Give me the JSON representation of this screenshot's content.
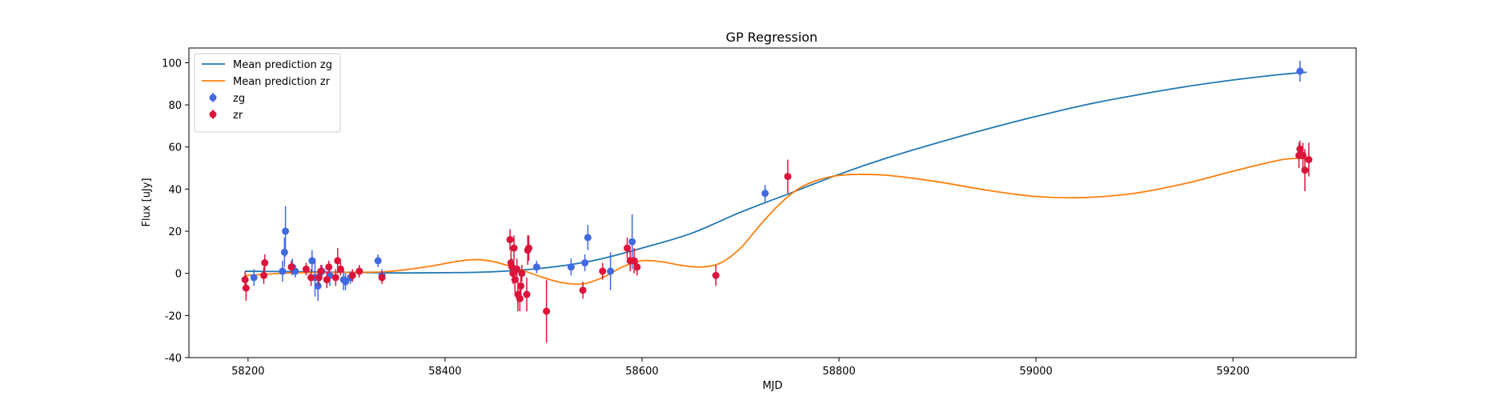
{
  "chart_data": {
    "type": "scatter",
    "title": "GP Regression",
    "xlabel": "MJD",
    "ylabel": "Flux [uJy]",
    "xlim": [
      58140,
      59325
    ],
    "ylim": [
      -40,
      107
    ],
    "xticks": [
      58200,
      58400,
      58600,
      58800,
      59000,
      59200
    ],
    "yticks": [
      -40,
      -20,
      0,
      20,
      40,
      60,
      80,
      100
    ],
    "grid": false,
    "legend_placement": "top-left",
    "series": [
      {
        "name": "Mean prediction zg",
        "kind": "line",
        "color": "#1f77b4",
        "x": [
          58197,
          58250,
          58300,
          58350,
          58400,
          58450,
          58500,
          58550,
          58600,
          58650,
          58700,
          58750,
          58800,
          58850,
          58900,
          58950,
          59000,
          59050,
          59100,
          59150,
          59200,
          59250,
          59275
        ],
        "y": [
          1,
          0.8,
          0.5,
          0.2,
          0.3,
          0.8,
          2.5,
          6,
          12,
          19,
          29,
          38,
          47,
          55,
          62,
          68.5,
          74.5,
          80,
          84.5,
          88.5,
          91.8,
          94.5,
          95.5
        ]
      },
      {
        "name": "Mean prediction zr",
        "kind": "line",
        "color": "#ff7f0e",
        "x": [
          58197,
          58250,
          58300,
          58340,
          58380,
          58410,
          58430,
          58450,
          58475,
          58500,
          58520,
          58540,
          58560,
          58580,
          58600,
          58620,
          58640,
          58660,
          58680,
          58700,
          58720,
          58740,
          58760,
          58780,
          58800,
          58820,
          58850,
          58900,
          58950,
          59000,
          59050,
          59100,
          59150,
          59200,
          59250,
          59275
        ],
        "y": [
          -1,
          0.3,
          0.5,
          0.8,
          3,
          5.5,
          6.5,
          5.5,
          2,
          -2,
          -4.5,
          -5,
          -2,
          3,
          6,
          5.5,
          3.8,
          3,
          5,
          12,
          23,
          33,
          40.5,
          44.5,
          46.5,
          47,
          46.5,
          43.5,
          39.5,
          36.5,
          36,
          38,
          42.5,
          48.5,
          54,
          54.5
        ]
      },
      {
        "name": "zg",
        "kind": "errorbar",
        "color": "#4169e1",
        "points": [
          [
            58206,
            -2,
            4
          ],
          [
            58235,
            1,
            5
          ],
          [
            58237,
            10,
            7
          ],
          [
            58238,
            20,
            12
          ],
          [
            58245,
            3,
            4
          ],
          [
            58248,
            1,
            3
          ],
          [
            58265,
            6,
            5
          ],
          [
            58268,
            -2,
            9
          ],
          [
            58271,
            -6,
            7
          ],
          [
            58275,
            1,
            3
          ],
          [
            58283,
            -1,
            5
          ],
          [
            58297,
            -3,
            5
          ],
          [
            58299,
            -4,
            4
          ],
          [
            58304,
            -2,
            3
          ],
          [
            58332,
            6,
            3
          ],
          [
            58336,
            -1,
            3
          ],
          [
            58493,
            3,
            3
          ],
          [
            58528,
            3,
            4
          ],
          [
            58542,
            5,
            4
          ],
          [
            58545,
            17,
            6
          ],
          [
            58568,
            1,
            9
          ],
          [
            58590,
            15,
            13
          ],
          [
            58725,
            38,
            4
          ],
          [
            59268,
            96,
            5
          ]
        ]
      },
      {
        "name": "zr",
        "kind": "errorbar",
        "color": "#dc143c",
        "points": [
          [
            58197,
            -3,
            4
          ],
          [
            58198,
            -7,
            6
          ],
          [
            58216,
            -1,
            4
          ],
          [
            58217,
            5,
            4
          ],
          [
            58244,
            3,
            3
          ],
          [
            58259,
            2,
            3
          ],
          [
            58264,
            -2,
            4
          ],
          [
            58272,
            -2,
            4
          ],
          [
            58274,
            1,
            3
          ],
          [
            58280,
            -3,
            4
          ],
          [
            58282,
            3,
            3
          ],
          [
            58289,
            -2,
            4
          ],
          [
            58291,
            6,
            6
          ],
          [
            58294,
            2,
            3
          ],
          [
            58306,
            -1,
            3
          ],
          [
            58313,
            1,
            3
          ],
          [
            58336,
            -2,
            3
          ],
          [
            58466,
            16,
            5
          ],
          [
            58467,
            5,
            6
          ],
          [
            58468,
            3,
            4
          ],
          [
            58469,
            0,
            5
          ],
          [
            58470,
            12,
            6
          ],
          [
            58471,
            -3,
            6
          ],
          [
            58473,
            2,
            5
          ],
          [
            58474,
            -10,
            8
          ],
          [
            58476,
            -12,
            6
          ],
          [
            58477,
            -6,
            5
          ],
          [
            58478,
            0,
            4
          ],
          [
            58483,
            -10,
            8
          ],
          [
            58484,
            11,
            7
          ],
          [
            58485,
            12,
            6
          ],
          [
            58503,
            -18,
            15
          ],
          [
            58540,
            -8,
            4
          ],
          [
            58560,
            1,
            4
          ],
          [
            58585,
            12,
            5
          ],
          [
            58588,
            6,
            5
          ],
          [
            58592,
            6,
            6
          ],
          [
            58595,
            3,
            4
          ],
          [
            58675,
            -1,
            5
          ],
          [
            58748,
            46,
            8
          ],
          [
            59267,
            56,
            6
          ],
          [
            59268,
            59,
            4
          ],
          [
            59271,
            56,
            6
          ],
          [
            59273,
            49,
            10
          ],
          [
            59277,
            54,
            8
          ]
        ]
      }
    ]
  },
  "legend": {
    "items": [
      {
        "label": "Mean prediction zg",
        "kind": "line",
        "color": "#1f77b4"
      },
      {
        "label": "Mean prediction zr",
        "kind": "line",
        "color": "#ff7f0e"
      },
      {
        "label": "zg",
        "kind": "marker",
        "color": "#4169e1"
      },
      {
        "label": "zr",
        "kind": "marker",
        "color": "#dc143c"
      }
    ]
  }
}
